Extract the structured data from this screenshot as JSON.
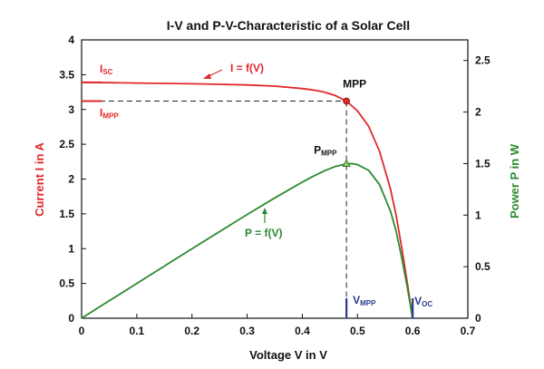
{
  "chart_data": {
    "type": "line",
    "title": "I-V and P-V-Characteristic of a Solar Cell",
    "xlabel": "Voltage V in V",
    "ylabel_left": "Current I in A",
    "ylabel_right": "Power P in W",
    "xlim": [
      0,
      0.7
    ],
    "ylim_left": [
      0,
      4
    ],
    "ylim_right": [
      0,
      2.7
    ],
    "x_ticks": [
      "0",
      "0.1",
      "0.2",
      "0.3",
      "0.4",
      "0.5",
      "0.6",
      "0.7"
    ],
    "y_ticks_left": [
      "0",
      "0.5",
      "1",
      "1.5",
      "2",
      "2.5",
      "3",
      "3.5",
      "4"
    ],
    "y_ticks_right": [
      "0",
      "0.5",
      "1",
      "1.5",
      "2",
      "2.5"
    ],
    "grid": false,
    "series": [
      {
        "name": "I = f(V)",
        "axis": "left",
        "color": "#e2282b",
        "x": [
          0,
          0.05,
          0.1,
          0.15,
          0.2,
          0.25,
          0.3,
          0.35,
          0.4,
          0.42,
          0.44,
          0.46,
          0.48,
          0.5,
          0.52,
          0.54,
          0.56,
          0.57,
          0.58,
          0.59,
          0.6
        ],
        "y": [
          3.39,
          3.385,
          3.38,
          3.375,
          3.37,
          3.362,
          3.352,
          3.335,
          3.3,
          3.28,
          3.25,
          3.2,
          3.12,
          2.98,
          2.76,
          2.4,
          1.85,
          1.48,
          1.02,
          0.52,
          0
        ]
      },
      {
        "name": "P = f(V)",
        "axis": "right",
        "color": "#2b8a2f",
        "x": [
          0,
          0.05,
          0.1,
          0.15,
          0.2,
          0.25,
          0.3,
          0.35,
          0.4,
          0.42,
          0.44,
          0.46,
          0.48,
          0.49,
          0.5,
          0.52,
          0.54,
          0.56,
          0.57,
          0.58,
          0.59,
          0.6
        ],
        "y": [
          0,
          0.169,
          0.338,
          0.506,
          0.674,
          0.84,
          1.006,
          1.167,
          1.32,
          1.378,
          1.43,
          1.472,
          1.498,
          1.5,
          1.49,
          1.435,
          1.296,
          1.036,
          0.844,
          0.592,
          0.307,
          0
        ]
      }
    ],
    "annotations": {
      "mpp": {
        "label": "MPP",
        "voltage": 0.48,
        "current": 3.12,
        "color": "#e2282b"
      },
      "pmpp": {
        "label": "P",
        "sub": "MPP",
        "voltage": 0.48,
        "power": 1.5
      },
      "isc": {
        "label": "I",
        "sub": "SC",
        "value": 3.39
      },
      "impp": {
        "label": "I",
        "sub": "MPP",
        "value": 3.12
      },
      "vmpp": {
        "label": "V",
        "sub": "MPP",
        "value": 0.48
      },
      "voc": {
        "label": "V",
        "sub": "OC",
        "value": 0.6
      },
      "iv_label": "I = f(V)",
      "pv_label": "P = f(V)"
    },
    "colors": {
      "current": "#e2282b",
      "power": "#2b8a2f",
      "voltage_marker": "#2e3a8c",
      "dashed": "#222222"
    }
  }
}
